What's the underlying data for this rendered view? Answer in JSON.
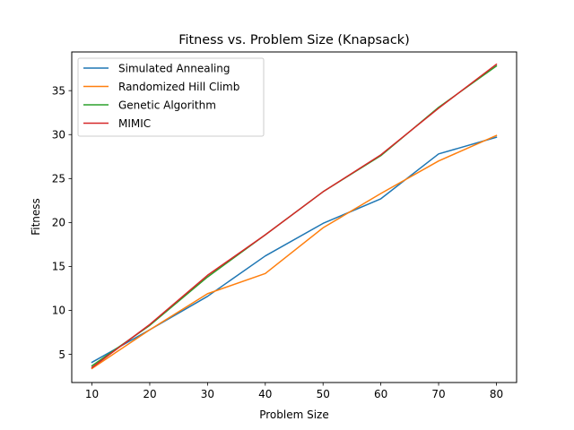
{
  "chart_data": {
    "type": "line",
    "title": "Fitness vs. Problem Size (Knapsack)",
    "xlabel": "Problem Size",
    "ylabel": "Fitness",
    "x": [
      10,
      20,
      30,
      40,
      50,
      60,
      70,
      80
    ],
    "xticks": [
      "10",
      "20",
      "30",
      "40",
      "50",
      "60",
      "70",
      "80"
    ],
    "yticks": [
      "5",
      "10",
      "15",
      "20",
      "25",
      "30",
      "35"
    ],
    "xlim": [
      6.5,
      83.5
    ],
    "ylim": [
      1.8,
      39.4
    ],
    "grid": false,
    "legend_position": "top-left",
    "series": [
      {
        "name": "Simulated Annealing",
        "color": "#1f77b4",
        "values": [
          4.1,
          7.8,
          11.6,
          16.2,
          19.9,
          22.7,
          27.8,
          29.7
        ]
      },
      {
        "name": "Randomized Hill Climb",
        "color": "#ff7f0e",
        "values": [
          3.4,
          7.8,
          11.9,
          14.2,
          19.4,
          23.3,
          27.0,
          29.9
        ]
      },
      {
        "name": "Genetic Algorithm",
        "color": "#2ca02c",
        "values": [
          3.7,
          8.3,
          13.8,
          18.6,
          23.5,
          27.6,
          33.1,
          37.8
        ]
      },
      {
        "name": "MIMIC",
        "color": "#d62728",
        "values": [
          3.5,
          8.4,
          14.0,
          18.6,
          23.5,
          27.7,
          33.0,
          38.0
        ]
      }
    ]
  }
}
